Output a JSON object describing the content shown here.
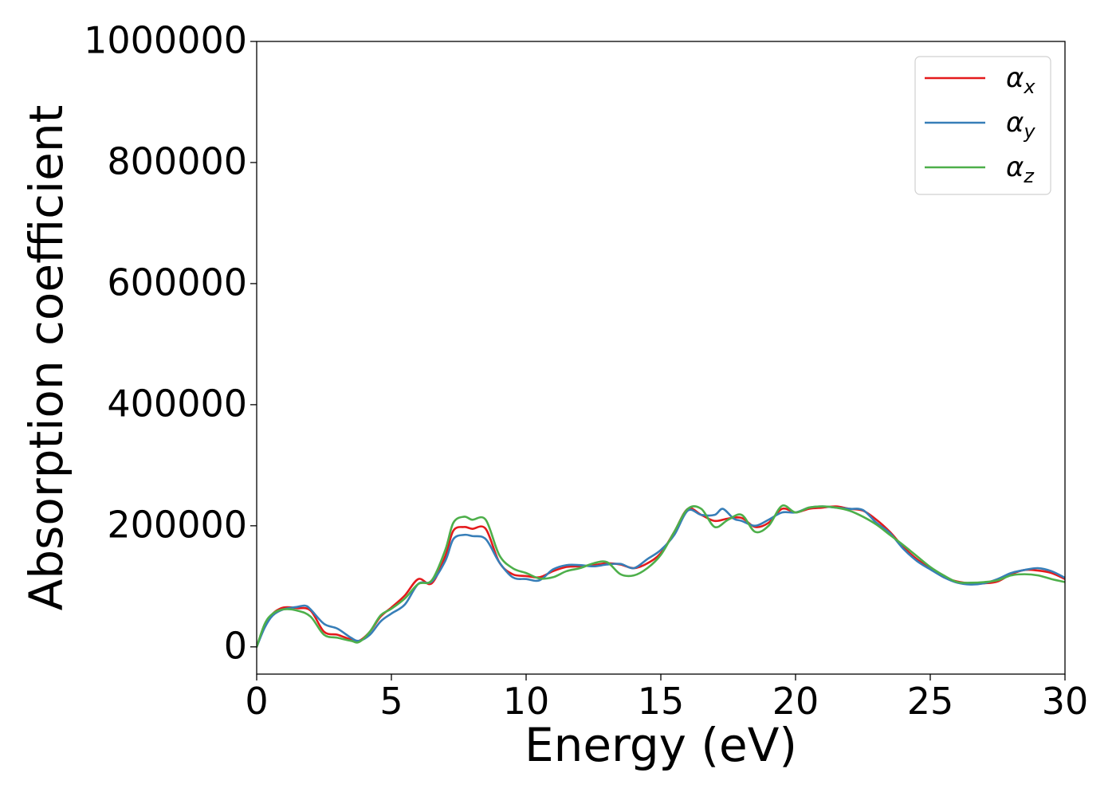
{
  "chart_data": {
    "type": "line",
    "xlabel": "Energy (eV)",
    "ylabel": "Absorption coefficient",
    "xlim": [
      0,
      30
    ],
    "ylim": [
      -45000,
      1000000
    ],
    "xticks": [
      0,
      5,
      10,
      15,
      20,
      25,
      30
    ],
    "yticks": [
      0,
      200000,
      400000,
      600000,
      800000,
      1000000
    ],
    "xtick_labels": [
      "0",
      "5",
      "10",
      "15",
      "20",
      "25",
      "30"
    ],
    "ytick_labels": [
      "0",
      "200000",
      "400000",
      "600000",
      "800000",
      "1000000"
    ],
    "grid": false,
    "legend_position": "top-right",
    "series": [
      {
        "name": "α_x",
        "label_main": "α",
        "label_sub": "x",
        "color": "#e41a1c",
        "x": [
          0,
          0.3,
          0.6,
          1.0,
          1.5,
          2.0,
          2.5,
          3.0,
          3.5,
          3.8,
          4.2,
          4.6,
          5.0,
          5.5,
          6.0,
          6.5,
          7.0,
          7.3,
          7.7,
          8.0,
          8.5,
          9.0,
          9.5,
          10.0,
          10.5,
          11.0,
          11.5,
          12.0,
          12.5,
          13.0,
          13.5,
          14.0,
          14.5,
          15.0,
          15.5,
          16.0,
          16.5,
          17.0,
          17.5,
          18.0,
          18.5,
          19.0,
          19.5,
          20.0,
          20.5,
          21.0,
          21.5,
          22.0,
          22.5,
          23.0,
          23.5,
          24.0,
          24.5,
          25.0,
          25.5,
          26.0,
          26.5,
          27.0,
          27.5,
          28.0,
          28.5,
          29.0,
          29.5,
          30.0
        ],
        "y": [
          0,
          35000,
          55000,
          65000,
          64000,
          60000,
          25000,
          20000,
          12000,
          10000,
          25000,
          50000,
          65000,
          85000,
          112000,
          105000,
          150000,
          192000,
          198000,
          195000,
          195000,
          140000,
          120000,
          117000,
          115000,
          125000,
          132000,
          133000,
          135000,
          138000,
          136000,
          130000,
          138000,
          155000,
          190000,
          228000,
          218000,
          208000,
          212000,
          213000,
          198000,
          205000,
          228000,
          222000,
          228000,
          230000,
          232000,
          228000,
          225000,
          210000,
          190000,
          165000,
          145000,
          130000,
          115000,
          108000,
          105000,
          105000,
          108000,
          120000,
          127000,
          126000,
          122000,
          112000
        ]
      },
      {
        "name": "α_y",
        "label_main": "α",
        "label_sub": "y",
        "color": "#377eb8",
        "x": [
          0,
          0.3,
          0.6,
          1.0,
          1.5,
          1.8,
          2.0,
          2.5,
          3.0,
          3.5,
          3.8,
          4.2,
          4.6,
          5.0,
          5.5,
          6.0,
          6.5,
          7.0,
          7.3,
          7.7,
          8.0,
          8.5,
          9.0,
          9.5,
          10.0,
          10.5,
          11.0,
          11.5,
          12.0,
          12.5,
          13.0,
          13.5,
          14.0,
          14.5,
          15.0,
          15.5,
          16.0,
          16.5,
          17.0,
          17.3,
          17.7,
          18.0,
          18.5,
          19.0,
          19.5,
          20.0,
          20.5,
          21.0,
          21.5,
          22.0,
          22.5,
          23.0,
          23.5,
          24.0,
          24.5,
          25.0,
          25.5,
          26.0,
          26.5,
          27.0,
          27.5,
          28.0,
          28.5,
          29.0,
          29.5,
          30.0
        ],
        "y": [
          0,
          32000,
          52000,
          62000,
          66000,
          68000,
          62000,
          38000,
          30000,
          15000,
          10000,
          20000,
          42000,
          55000,
          70000,
          104000,
          108000,
          142000,
          178000,
          185000,
          183000,
          178000,
          140000,
          115000,
          112000,
          110000,
          128000,
          135000,
          135000,
          133000,
          136000,
          137000,
          130000,
          145000,
          160000,
          185000,
          225000,
          218000,
          218000,
          228000,
          212000,
          208000,
          200000,
          210000,
          222000,
          222000,
          230000,
          232000,
          230000,
          228000,
          226000,
          205000,
          188000,
          162000,
          142000,
          128000,
          115000,
          106000,
          103000,
          105000,
          112000,
          122000,
          127000,
          130000,
          125000,
          114000
        ]
      },
      {
        "name": "α_z",
        "label_main": "α",
        "label_sub": "z",
        "color": "#4daf4a",
        "x": [
          0,
          0.3,
          0.6,
          1.0,
          1.5,
          2.0,
          2.5,
          3.0,
          3.5,
          3.8,
          4.2,
          4.6,
          5.0,
          5.5,
          6.0,
          6.5,
          7.0,
          7.3,
          7.7,
          8.0,
          8.5,
          9.0,
          9.5,
          10.0,
          10.5,
          11.0,
          11.5,
          12.0,
          12.5,
          13.0,
          13.5,
          14.0,
          14.5,
          15.0,
          15.5,
          16.0,
          16.5,
          17.0,
          17.5,
          18.0,
          18.5,
          19.0,
          19.5,
          20.0,
          20.5,
          21.0,
          21.5,
          22.0,
          22.5,
          23.0,
          23.5,
          24.0,
          24.5,
          25.0,
          25.5,
          26.0,
          26.5,
          27.0,
          27.5,
          28.0,
          28.5,
          29.0,
          29.5,
          30.0
        ],
        "y": [
          0,
          38000,
          55000,
          62000,
          60000,
          50000,
          20000,
          15000,
          10000,
          8000,
          25000,
          52000,
          63000,
          80000,
          104000,
          110000,
          160000,
          205000,
          215000,
          210000,
          210000,
          152000,
          130000,
          122000,
          113000,
          115000,
          125000,
          130000,
          138000,
          140000,
          120000,
          118000,
          130000,
          152000,
          190000,
          228000,
          228000,
          198000,
          210000,
          218000,
          190000,
          200000,
          233000,
          222000,
          230000,
          232000,
          230000,
          225000,
          215000,
          202000,
          185000,
          168000,
          150000,
          132000,
          118000,
          107000,
          106000,
          107000,
          110000,
          118000,
          120000,
          118000,
          112000,
          107000
        ]
      }
    ]
  }
}
